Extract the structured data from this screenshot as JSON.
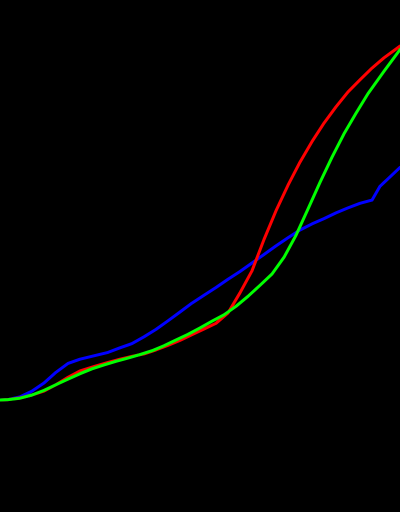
{
  "chart_data": {
    "type": "line",
    "title": "",
    "xlabel": "",
    "ylabel": "",
    "xlim": [
      0,
      100
    ],
    "ylim": [
      0,
      100
    ],
    "grid": false,
    "legend": "none",
    "background": "#000000",
    "series": [
      {
        "color": "#0000ff",
        "points": [
          [
            0,
            0
          ],
          [
            2,
            0.1
          ],
          [
            5,
            0.9
          ],
          [
            8,
            2.5
          ],
          [
            11,
            4.8
          ],
          [
            14,
            7.8
          ],
          [
            17,
            10.3
          ],
          [
            20,
            11.5
          ],
          [
            24,
            12.6
          ],
          [
            27,
            13.4
          ],
          [
            30,
            14.7
          ],
          [
            33,
            15.9
          ],
          [
            36,
            17.8
          ],
          [
            39,
            19.9
          ],
          [
            42,
            22.3
          ],
          [
            45,
            24.8
          ],
          [
            48,
            27.3
          ],
          [
            51,
            29.5
          ],
          [
            54,
            31.7
          ],
          [
            57,
            34.0
          ],
          [
            60,
            36.2
          ],
          [
            63,
            38.6
          ],
          [
            66,
            41.0
          ],
          [
            69,
            43.4
          ],
          [
            72,
            45.7
          ],
          [
            75,
            47.9
          ],
          [
            78,
            49.6
          ],
          [
            81,
            51.1
          ],
          [
            84,
            52.7
          ],
          [
            87,
            54.1
          ],
          [
            90,
            55.4
          ],
          [
            93,
            56.3
          ],
          [
            95,
            60.2
          ],
          [
            97,
            62.3
          ],
          [
            100,
            65.5
          ]
        ]
      },
      {
        "color": "#ff0000",
        "points": [
          [
            0,
            0
          ],
          [
            2,
            0.1
          ],
          [
            5,
            0.6
          ],
          [
            8,
            1.4
          ],
          [
            11,
            2.5
          ],
          [
            14,
            4.3
          ],
          [
            17,
            6.4
          ],
          [
            20,
            8.2
          ],
          [
            24,
            9.6
          ],
          [
            27,
            10.6
          ],
          [
            30,
            11.5
          ],
          [
            33,
            12.3
          ],
          [
            36,
            13.0
          ],
          [
            39,
            14.1
          ],
          [
            42,
            15.4
          ],
          [
            45,
            16.8
          ],
          [
            48,
            18.4
          ],
          [
            51,
            20.0
          ],
          [
            54,
            21.6
          ],
          [
            57,
            24.5
          ],
          [
            60,
            30.2
          ],
          [
            63,
            36.4
          ],
          [
            66,
            45.2
          ],
          [
            69,
            53.3
          ],
          [
            72,
            60.5
          ],
          [
            75,
            67.0
          ],
          [
            78,
            72.8
          ],
          [
            81,
            78.0
          ],
          [
            84,
            82.6
          ],
          [
            87,
            86.8
          ],
          [
            90,
            90.2
          ],
          [
            93,
            93.5
          ],
          [
            96,
            96.4
          ],
          [
            100,
            99.7
          ]
        ]
      },
      {
        "color": "#00ff00",
        "points": [
          [
            0,
            0
          ],
          [
            2,
            0.1
          ],
          [
            5,
            0.5
          ],
          [
            8,
            1.4
          ],
          [
            11,
            2.7
          ],
          [
            14,
            4.3
          ],
          [
            17,
            5.9
          ],
          [
            20,
            7.4
          ],
          [
            23,
            8.8
          ],
          [
            26,
            9.9
          ],
          [
            29,
            10.9
          ],
          [
            32,
            11.8
          ],
          [
            35,
            12.8
          ],
          [
            38,
            13.9
          ],
          [
            41,
            15.3
          ],
          [
            44,
            16.9
          ],
          [
            47,
            18.5
          ],
          [
            50,
            20.3
          ],
          [
            53,
            22.2
          ],
          [
            56,
            24.0
          ],
          [
            59,
            26.4
          ],
          [
            62,
            29.2
          ],
          [
            65,
            32.3
          ],
          [
            68,
            35.5
          ],
          [
            71,
            40.2
          ],
          [
            74,
            46.4
          ],
          [
            77,
            53.8
          ],
          [
            80,
            61.3
          ],
          [
            83,
            68.4
          ],
          [
            86,
            75.0
          ],
          [
            89,
            80.8
          ],
          [
            92,
            86.3
          ],
          [
            96,
            92.6
          ],
          [
            100,
            98.7
          ]
        ]
      }
    ]
  }
}
